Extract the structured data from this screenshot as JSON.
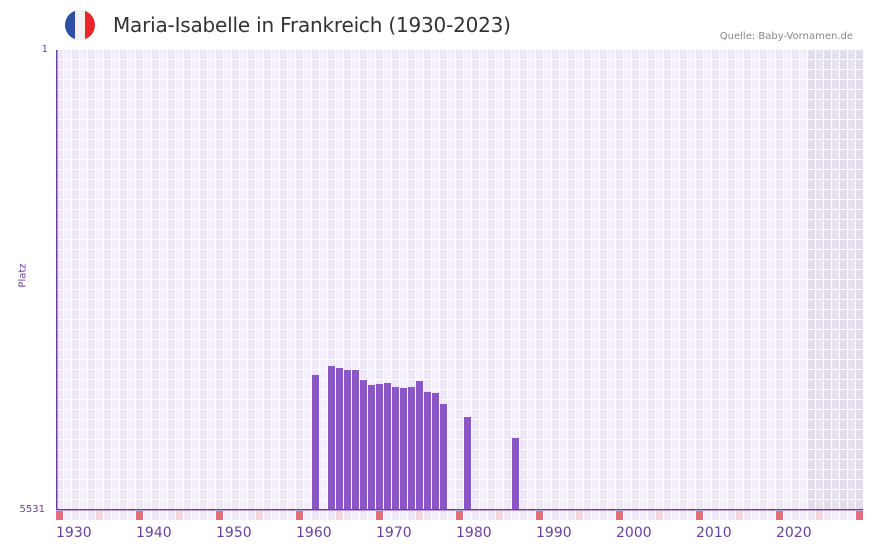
{
  "header": {
    "title": "Maria-Isabelle in Frankreich (1930-2023)",
    "source": "Quelle: Baby-Vornamen.de",
    "flag": {
      "colors": [
        "#2d4fa3",
        "#f1f1f1",
        "#e8262e"
      ]
    }
  },
  "axes": {
    "y_label": "Platz",
    "y_top": "1",
    "y_bottom": "5531",
    "x_labels": [
      "1930",
      "1940",
      "1950",
      "1960",
      "1970",
      "1980",
      "1990",
      "2000",
      "2010",
      "2020"
    ]
  },
  "colors": {
    "bar": "#8a56c8",
    "axis": "#6b3fa0",
    "grid_a": "#ede7f8",
    "grid_b": "#f3effb",
    "shade": "#e2dcee",
    "tick_decade": "#e36f7a",
    "tick_half": "#f5d5de"
  },
  "chart_data": {
    "type": "bar",
    "title": "Maria-Isabelle in Frankreich (1930-2023)",
    "xlabel": "",
    "ylabel": "Platz",
    "ylim": [
      5531,
      1
    ],
    "y_inverted": true,
    "x_range": [
      1930,
      2030
    ],
    "shaded_from": 2024,
    "grid": true,
    "legend": null,
    "categories": [
      1962,
      1964,
      1965,
      1966,
      1967,
      1968,
      1969,
      1970,
      1971,
      1972,
      1973,
      1974,
      1975,
      1976,
      1977,
      1978,
      1981,
      1987
    ],
    "values": [
      3908,
      3800,
      3824,
      3848,
      3848,
      3968,
      4028,
      4016,
      4004,
      4052,
      4064,
      4052,
      3980,
      4112,
      4124,
      4257,
      4413,
      4665
    ]
  }
}
